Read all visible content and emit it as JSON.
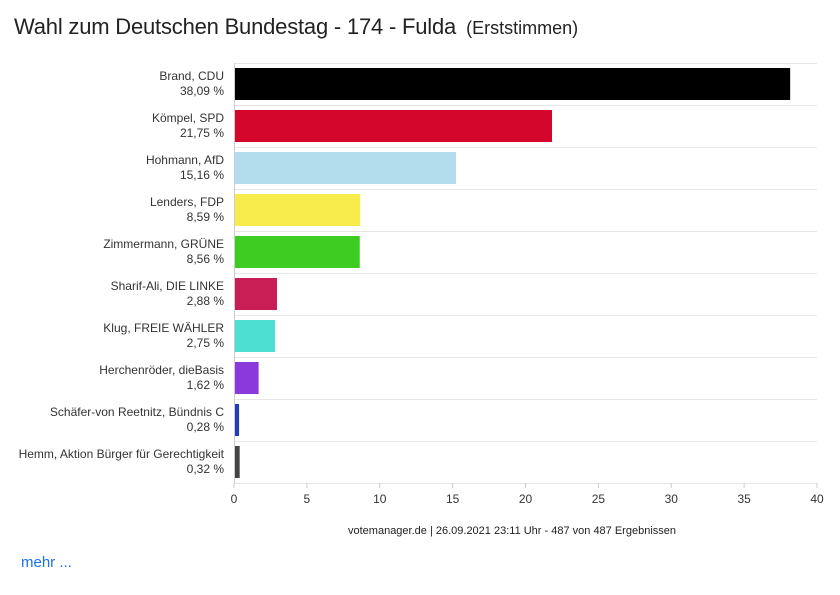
{
  "header": {
    "title": "Wahl zum Deutschen Bundestag - 174 - Fulda",
    "subtitle": "(Erststimmen)"
  },
  "footer": {
    "credit": "votemanager.de | 26.09.2021 23:11 Uhr - 487 von 487 Ergebnissen",
    "more_link": "mehr ..."
  },
  "chart_data": {
    "type": "bar",
    "orientation": "horizontal",
    "categories": [
      "Brand, CDU",
      "Kömpel, SPD",
      "Hohmann, AfD",
      "Lenders, FDP",
      "Zimmermann, GRÜNE",
      "Sharif-Ali, DIE LINKE",
      "Klug, FREIE WÄHLER",
      "Herchenröder, dieBasis",
      "Schäfer-von Reetnitz, Bündnis C",
      "Hemm, Aktion Bürger für Gerechtigkeit"
    ],
    "value_labels": [
      "38,09 %",
      "21,75 %",
      "15,16 %",
      "8,59 %",
      "8,56 %",
      "2,88 %",
      "2,75 %",
      "1,62 %",
      "0,28 %",
      "0,32 %"
    ],
    "values": [
      38.09,
      21.75,
      15.16,
      8.59,
      8.56,
      2.88,
      2.75,
      1.62,
      0.28,
      0.32
    ],
    "colors": [
      "#000000",
      "#d4062c",
      "#b3dcec",
      "#f7ec4b",
      "#3fcc22",
      "#c91e55",
      "#4ddfd2",
      "#8b39dd",
      "#1f3db5",
      "#444444"
    ],
    "xlim": [
      0,
      40
    ],
    "xticks": [
      0,
      5,
      10,
      15,
      20,
      25,
      30,
      35,
      40
    ],
    "grid": true
  }
}
